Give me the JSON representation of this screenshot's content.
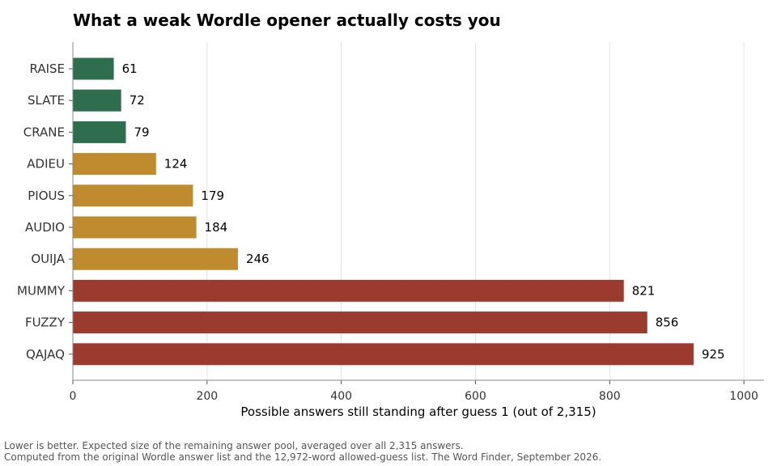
{
  "chart_data": {
    "type": "bar",
    "orientation": "horizontal",
    "title": "What a weak Wordle opener actually costs you",
    "xlabel": "Possible answers still standing after guess 1 (out of 2,315)",
    "ylabel": "",
    "xlim": [
      0,
      1030
    ],
    "xticks": [
      0,
      200,
      400,
      600,
      800,
      1000
    ],
    "grid": "vertical",
    "categories": [
      "RAISE",
      "SLATE",
      "CRANE",
      "ADIEU",
      "PIOUS",
      "AUDIO",
      "OUIJA",
      "MUMMY",
      "FUZZY",
      "QAJAQ"
    ],
    "values": [
      61,
      72,
      79,
      124,
      179,
      184,
      246,
      821,
      856,
      925
    ],
    "bar_colors": [
      "#2e6e4e",
      "#2e6e4e",
      "#2e6e4e",
      "#c08a2e",
      "#c08a2e",
      "#c08a2e",
      "#c08a2e",
      "#9b3a2f",
      "#9b3a2f",
      "#9b3a2f"
    ],
    "notes": [
      "Lower is better. Expected size of the remaining answer pool, averaged over all 2,315 answers.",
      "Computed from the original Wordle answer list and the 12,972-word allowed-guess list. The Word Finder, September 2026."
    ]
  }
}
